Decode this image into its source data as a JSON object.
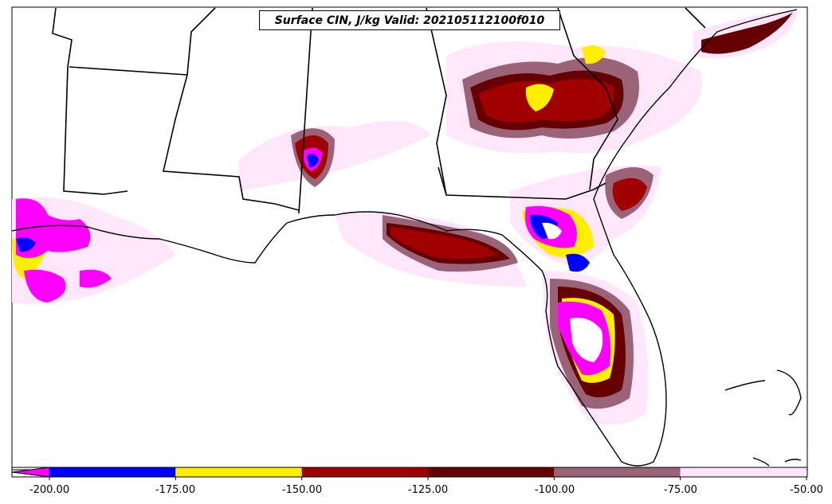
{
  "title": "Surface CIN, J/kg Valid: 202105112100f010",
  "colorbar": {
    "ticks": [
      "-200.00",
      "-175.00",
      "-150.00",
      "-125.00",
      "-100.00",
      "-75.00",
      "-50.00"
    ],
    "bins": [
      {
        "color": "#ff00ff"
      },
      {
        "color": "#0000ff"
      },
      {
        "color": "#ffee00"
      },
      {
        "color": "#a00000"
      },
      {
        "color": "#640000"
      },
      {
        "color": "#9a6378"
      },
      {
        "color": "#ffe6fa"
      }
    ]
  }
}
